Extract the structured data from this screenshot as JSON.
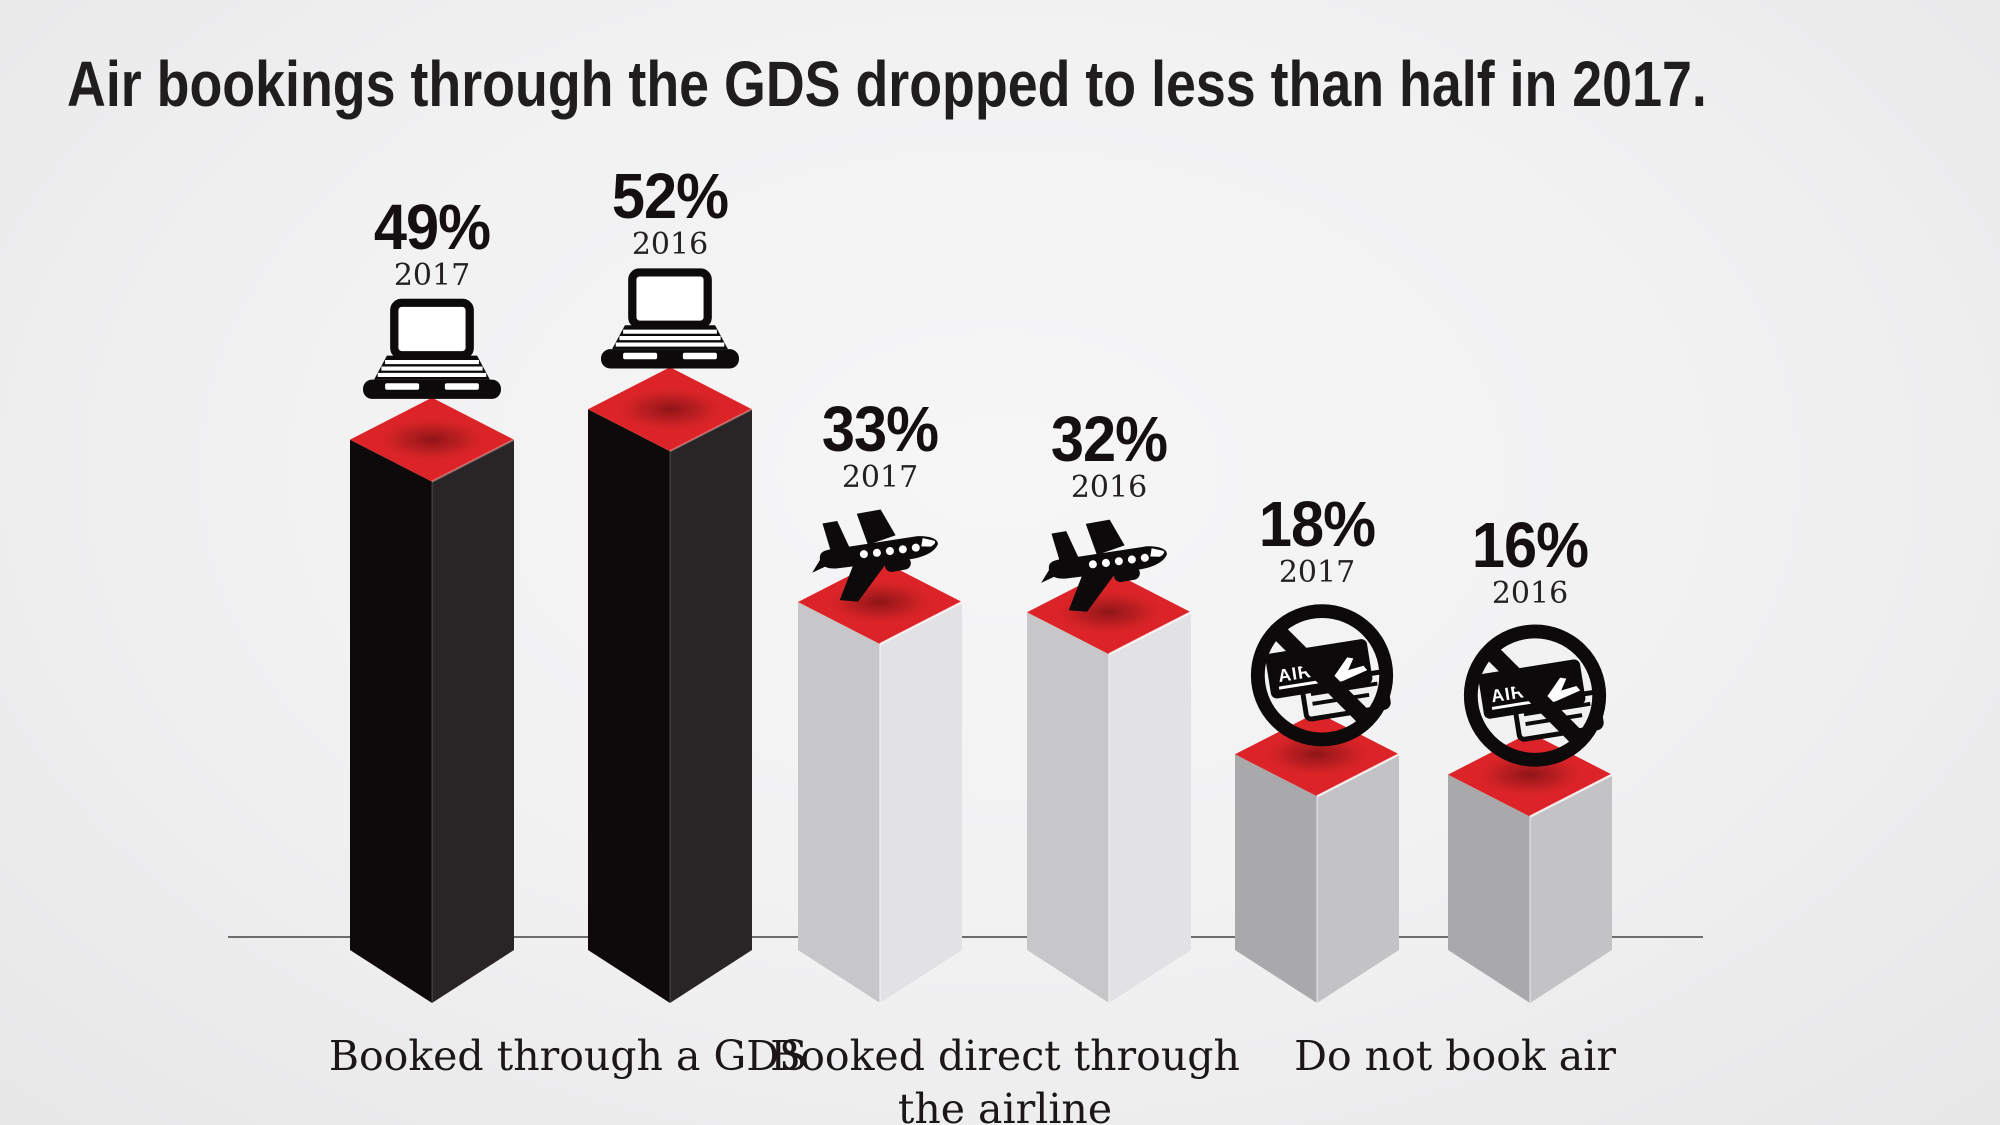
{
  "title": "Air bookings through the GDS dropped to less than half in 2017.",
  "chart_data": {
    "type": "bar",
    "title": "Air bookings through the GDS dropped to less than half in 2017.",
    "unit": "%",
    "has_baseline_axis": true,
    "legend": "none",
    "value_range": [
      0,
      55
    ],
    "groups": [
      {
        "label": "Booked through a GDS",
        "label_lines": [
          "Booked through a GDS"
        ],
        "icon": "laptop-icon",
        "style": "black",
        "bars": [
          {
            "year": "2017",
            "value": 49,
            "display": "49%"
          },
          {
            "year": "2016",
            "value": 52,
            "display": "52%"
          }
        ]
      },
      {
        "label": "Booked direct through the airline",
        "label_lines": [
          "Booked direct through",
          "the airline"
        ],
        "icon": "airplane-icon",
        "style": "light-gray",
        "bars": [
          {
            "year": "2017",
            "value": 33,
            "display": "33%"
          },
          {
            "year": "2016",
            "value": 32,
            "display": "32%"
          }
        ]
      },
      {
        "label": "Do not book air",
        "label_lines": [
          "Do not book air"
        ],
        "icon": "no-air-ticket-icon",
        "style": "medium-gray",
        "bars": [
          {
            "year": "2017",
            "value": 18,
            "display": "18%"
          },
          {
            "year": "2016",
            "value": 16,
            "display": "16%"
          }
        ]
      }
    ],
    "ticket_icon_text": "AIR",
    "colors": {
      "bar_top_red": "#dc2428",
      "bar_top_shadow": "#8c1518",
      "black_left": "#0e0a0b",
      "black_right": "#292425",
      "lightgray_left": "#c7c6c8",
      "lightgray_right": "#e2e1e3",
      "gray_left": "#a9a8ab",
      "gray_right": "#c3c2c5",
      "background": "#f1f1f2",
      "axis_line": "#6f6c6d",
      "icon_black": "#0d0a0b",
      "text": "#141011"
    }
  }
}
